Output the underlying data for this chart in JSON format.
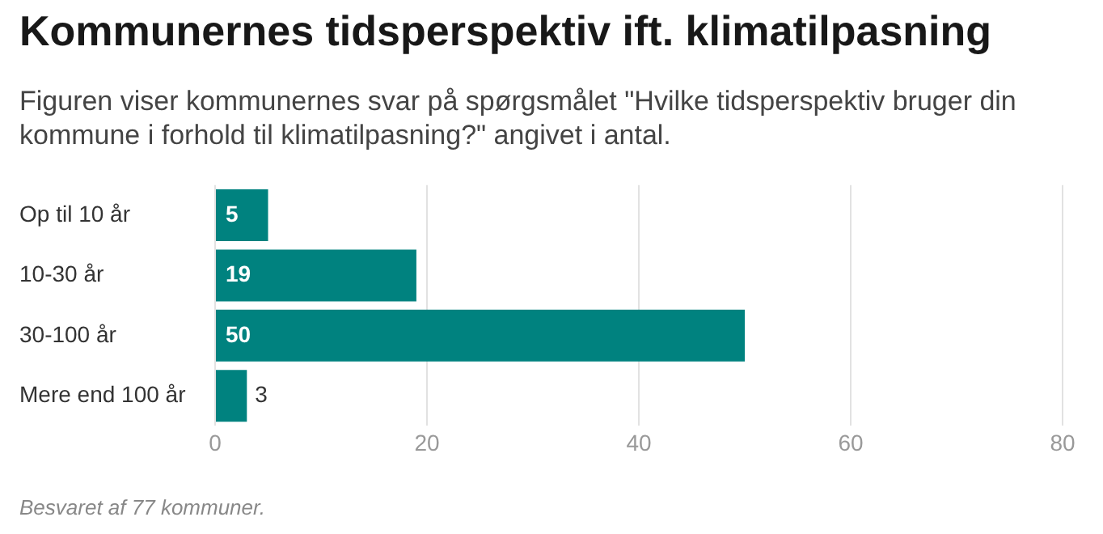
{
  "chart_data": {
    "type": "bar",
    "orientation": "horizontal",
    "title": "Kommunernes tidsperspektiv ift. klimatilpasning",
    "subtitle": "Figuren viser kommunernes svar på spørgsmålet \"Hvilke tidsperspektiv bruger din kommune i forhold til klimatilpasning?\" angivet i antal.",
    "categories": [
      "Op til 10 år",
      "10-30 år",
      "30-100 år",
      "Mere end 100 år"
    ],
    "values": [
      5,
      19,
      50,
      3
    ],
    "color": "#00827f",
    "xlim": [
      0,
      80
    ],
    "xticks": [
      0,
      20,
      40,
      60,
      80
    ],
    "grid": "x",
    "data_labels": true,
    "annotations": [
      "Besvaret af 77 kommuner."
    ]
  }
}
